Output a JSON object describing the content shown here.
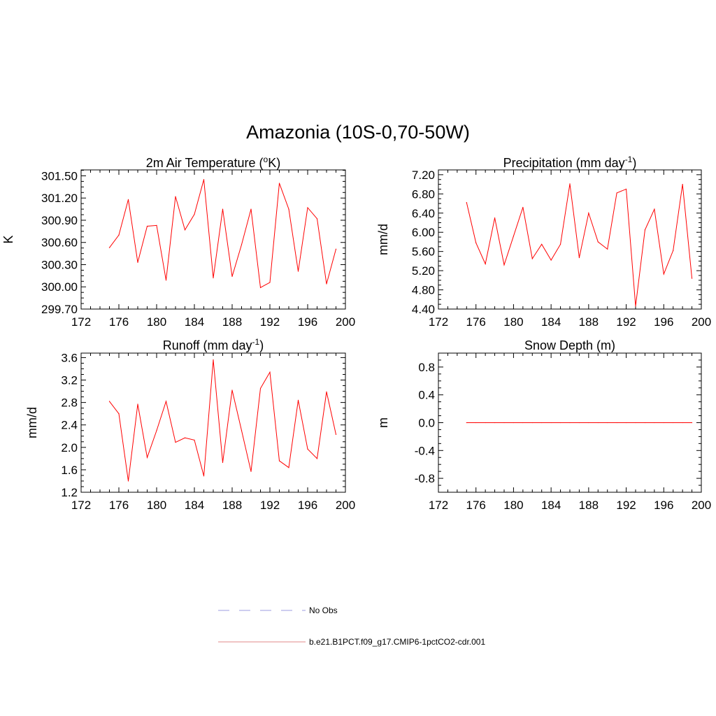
{
  "figure": {
    "title": "Amazonia (10S-0,70-50W)"
  },
  "chart_data": [
    {
      "type": "line",
      "title": "2m Air Temperature (oK)",
      "title_parts": [
        "2m Air Temperature (",
        "o",
        "K)"
      ],
      "xlabel": "",
      "ylabel": "K",
      "xlim": [
        172,
        200
      ],
      "ylim": [
        299.7,
        301.58
      ],
      "xticks": [
        "172",
        "176",
        "180",
        "184",
        "188",
        "192",
        "196",
        "200"
      ],
      "yticks": [
        "299.70",
        "300.00",
        "300.30",
        "300.60",
        "300.90",
        "301.20",
        "301.50"
      ],
      "x": [
        175,
        176,
        177,
        178,
        179,
        180,
        181,
        182,
        183,
        184,
        185,
        186,
        187,
        188,
        189,
        190,
        191,
        192,
        193,
        194,
        195,
        196,
        197,
        198,
        199
      ],
      "series": [
        {
          "name": "b.e21.B1PCT.f09_g17.CMIP6-1pctCO2-cdr.001",
          "values": [
            300.53,
            300.7,
            301.18,
            300.33,
            300.82,
            300.83,
            300.09,
            301.22,
            300.77,
            300.98,
            301.45,
            300.12,
            301.05,
            300.14,
            300.57,
            301.05,
            299.99,
            300.06,
            301.4,
            301.05,
            300.21,
            301.07,
            300.92,
            300.04,
            300.51
          ]
        }
      ]
    },
    {
      "type": "line",
      "title": "Precipitation (mm day-1)",
      "title_parts": [
        "Precipitation (mm day",
        "-1",
        ")"
      ],
      "xlabel": "",
      "ylabel": "mm/d",
      "xlim": [
        172,
        200
      ],
      "ylim": [
        4.4,
        7.3
      ],
      "xticks": [
        "172",
        "176",
        "180",
        "184",
        "188",
        "192",
        "196",
        "200"
      ],
      "yticks": [
        "4.40",
        "4.80",
        "5.20",
        "5.60",
        "6.00",
        "6.40",
        "6.80",
        "7.20"
      ],
      "x": [
        175,
        176,
        177,
        178,
        179,
        180,
        181,
        182,
        183,
        184,
        185,
        186,
        187,
        188,
        189,
        190,
        191,
        192,
        193,
        194,
        195,
        196,
        197,
        198,
        199
      ],
      "series": [
        {
          "name": "b.e21.B1PCT.f09_g17.CMIP6-1pctCO2-cdr.001",
          "values": [
            6.62,
            5.78,
            5.34,
            6.3,
            5.32,
            5.92,
            6.52,
            5.45,
            5.75,
            5.42,
            5.75,
            7.01,
            5.47,
            6.4,
            5.8,
            5.65,
            6.82,
            6.9,
            4.46,
            6.05,
            6.48,
            5.13,
            5.62,
            7.0,
            5.04
          ]
        }
      ]
    },
    {
      "type": "line",
      "title": "Runoff (mm day-1)",
      "title_parts": [
        "Runoff (mm day",
        "-1",
        ")"
      ],
      "xlabel": "",
      "ylabel": "mm/d",
      "xlim": [
        172,
        200
      ],
      "ylim": [
        1.2,
        3.68
      ],
      "xticks": [
        "172",
        "176",
        "180",
        "184",
        "188",
        "192",
        "196",
        "200"
      ],
      "yticks": [
        "1.2",
        "1.6",
        "2.0",
        "2.4",
        "2.8",
        "3.2",
        "3.6"
      ],
      "x": [
        175,
        176,
        177,
        178,
        179,
        180,
        181,
        182,
        183,
        184,
        185,
        186,
        187,
        188,
        189,
        190,
        191,
        192,
        193,
        194,
        195,
        196,
        197,
        198,
        199
      ],
      "series": [
        {
          "name": "b.e21.B1PCT.f09_g17.CMIP6-1pctCO2-cdr.001",
          "values": [
            2.82,
            2.6,
            1.4,
            2.77,
            1.82,
            2.3,
            2.82,
            2.09,
            2.17,
            2.13,
            1.49,
            3.56,
            1.73,
            3.02,
            2.3,
            1.57,
            3.05,
            3.34,
            1.76,
            1.64,
            2.84,
            1.97,
            1.8,
            2.99,
            2.23
          ]
        }
      ]
    },
    {
      "type": "line",
      "title": "Snow Depth (m)",
      "title_parts": [
        "Snow Depth (m)",
        "",
        ""
      ],
      "xlabel": "",
      "ylabel": "m",
      "xlim": [
        172,
        200
      ],
      "ylim": [
        -1.0,
        1.0
      ],
      "xticks": [
        "172",
        "176",
        "180",
        "184",
        "188",
        "192",
        "196",
        "200"
      ],
      "yticks": [
        "-0.8",
        "-0.4",
        "0.0",
        "0.4",
        "0.8"
      ],
      "x": [
        175,
        176,
        177,
        178,
        179,
        180,
        181,
        182,
        183,
        184,
        185,
        186,
        187,
        188,
        189,
        190,
        191,
        192,
        193,
        194,
        195,
        196,
        197,
        198,
        199
      ],
      "series": [
        {
          "name": "b.e21.B1PCT.f09_g17.CMIP6-1pctCO2-cdr.001",
          "values": [
            0,
            0,
            0,
            0,
            0,
            0,
            0,
            0,
            0,
            0,
            0,
            0,
            0,
            0,
            0,
            0,
            0,
            0,
            0,
            0,
            0,
            0,
            0,
            0,
            0
          ]
        }
      ]
    }
  ],
  "legend": {
    "entries": [
      {
        "label": "No Obs",
        "style": "dashed",
        "color": "#b0b0e8"
      },
      {
        "label": "b.e21.B1PCT.f09_g17.CMIP6-1pctCO2-cdr.001",
        "style": "solid",
        "color": "#e8a0a0"
      }
    ]
  },
  "colors": {
    "series_line": "#ff0000",
    "axes": "#000000"
  }
}
